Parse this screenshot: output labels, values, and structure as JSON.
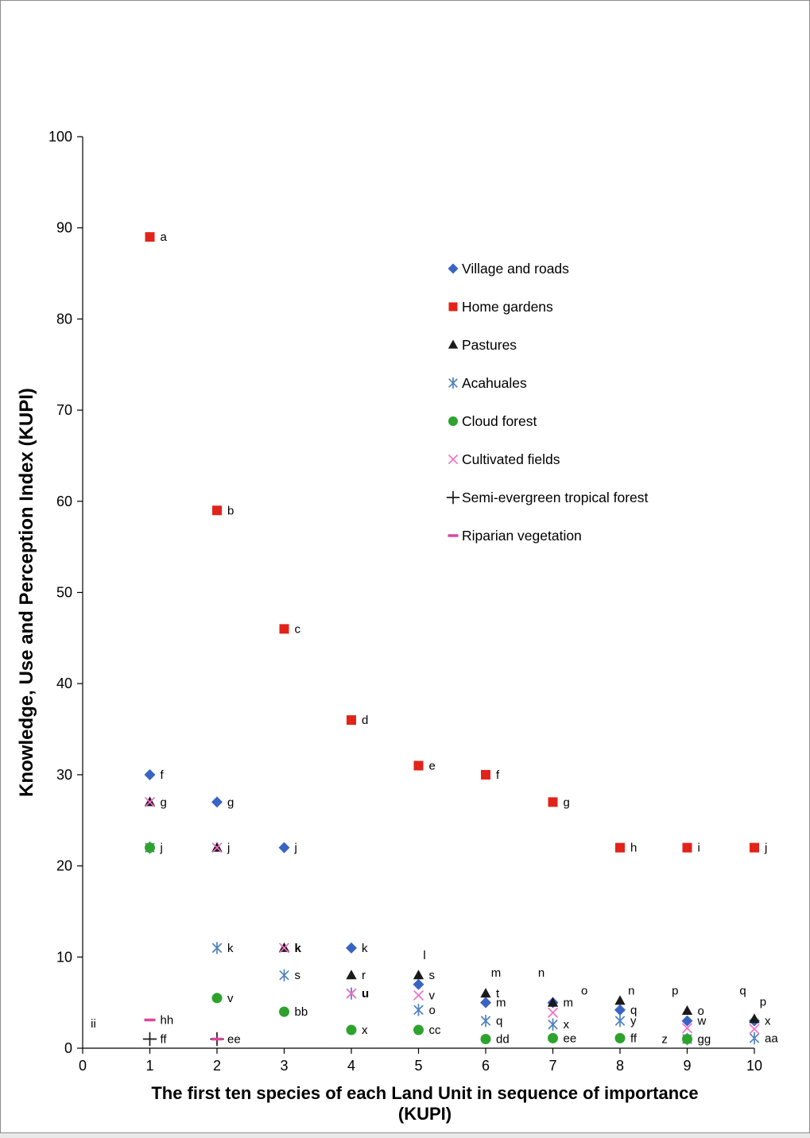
{
  "figure": {
    "background": "#ffffff",
    "border_color": "#8c8c8c",
    "axis_color": "#000000"
  },
  "chart_data": {
    "type": "scatter",
    "title": "",
    "ylabel": "Knowledge, Use and Perception Index (KUPI)",
    "xlabel_line1": "The first ten species of each Land Unit in sequence of importance",
    "xlabel_line2": "(KUPI)",
    "xlim": [
      0,
      10
    ],
    "ylim": [
      0,
      100
    ],
    "xticks": [
      0,
      1,
      2,
      3,
      4,
      5,
      6,
      7,
      8,
      9,
      10
    ],
    "yticks": [
      0,
      10,
      20,
      30,
      40,
      50,
      60,
      70,
      80,
      90,
      100
    ],
    "grid": false,
    "legend_position": "inside-upper-middle",
    "series": [
      {
        "name": "Village and roads",
        "marker": "diamond",
        "color": "#3A64C4",
        "points": [
          {
            "x": 1,
            "y": 30,
            "label": "f"
          },
          {
            "x": 2,
            "y": 27,
            "label": "g"
          },
          {
            "x": 3,
            "y": 22,
            "label": "j"
          },
          {
            "x": 4,
            "y": 11,
            "label": "k"
          },
          {
            "x": 5,
            "y": 7
          },
          {
            "x": 6,
            "y": 5,
            "label": "m"
          },
          {
            "x": 7,
            "y": 5,
            "label": "m"
          },
          {
            "x": 8,
            "y": 4.2,
            "label": "q"
          },
          {
            "x": 9,
            "y": 3,
            "label": "w"
          },
          {
            "x": 10,
            "y": 3,
            "label": "x"
          }
        ]
      },
      {
        "name": "Home gardens",
        "marker": "square",
        "color": "#E2231A",
        "points": [
          {
            "x": 1,
            "y": 89,
            "label": "a"
          },
          {
            "x": 2,
            "y": 59,
            "label": "b"
          },
          {
            "x": 3,
            "y": 46,
            "label": "c"
          },
          {
            "x": 4,
            "y": 36,
            "label": "d"
          },
          {
            "x": 5,
            "y": 31,
            "label": "e"
          },
          {
            "x": 6,
            "y": 30,
            "label": "f"
          },
          {
            "x": 7,
            "y": 27,
            "label": "g"
          },
          {
            "x": 8,
            "y": 22,
            "label": "h"
          },
          {
            "x": 9,
            "y": 22,
            "label": "i"
          },
          {
            "x": 10,
            "y": 22,
            "label": "j"
          }
        ]
      },
      {
        "name": "Pastures",
        "marker": "triangle",
        "color": "#1A1A1A",
        "points": [
          {
            "x": 1,
            "y": 27,
            "label": "g"
          },
          {
            "x": 2,
            "y": 22,
            "label": "j"
          },
          {
            "x": 3,
            "y": 11,
            "label": "k",
            "bold": true
          },
          {
            "x": 4,
            "y": 8,
            "label": "r"
          },
          {
            "x": 5,
            "y": 8,
            "label": "s"
          },
          {
            "x": 6,
            "y": 6,
            "label": "t"
          },
          {
            "x": 7,
            "y": 5
          },
          {
            "x": 8,
            "y": 5.2
          },
          {
            "x": 9,
            "y": 4.1,
            "label": "o"
          },
          {
            "x": 10,
            "y": 3.2
          }
        ]
      },
      {
        "name": "Acahuales",
        "marker": "asterisk",
        "color": "#4F81BD",
        "points": [
          {
            "x": 1,
            "y": 22
          },
          {
            "x": 2,
            "y": 11,
            "label": "k"
          },
          {
            "x": 3,
            "y": 8,
            "label": "s"
          },
          {
            "x": 4,
            "y": 6,
            "label": "u",
            "bold": true
          },
          {
            "x": 5,
            "y": 4.2,
            "label": "o"
          },
          {
            "x": 6,
            "y": 3,
            "label": "q"
          },
          {
            "x": 7,
            "y": 2.6,
            "label": "x"
          },
          {
            "x": 8,
            "y": 3,
            "label": "y"
          },
          {
            "x": 9,
            "y": 1
          },
          {
            "x": 10,
            "y": 1.1,
            "label": "aa"
          }
        ]
      },
      {
        "name": "Cloud forest",
        "marker": "circle",
        "color": "#2DA32D",
        "points": [
          {
            "x": 1,
            "y": 22,
            "label": "j"
          },
          {
            "x": 2,
            "y": 5.5,
            "label": "v"
          },
          {
            "x": 3,
            "y": 4,
            "label": "bb"
          },
          {
            "x": 4,
            "y": 2,
            "label": "x"
          },
          {
            "x": 5,
            "y": 2,
            "label": "cc"
          },
          {
            "x": 6,
            "y": 1,
            "label": "dd"
          },
          {
            "x": 7,
            "y": 1.1,
            "label": "ee"
          },
          {
            "x": 8,
            "y": 1.1,
            "label": "ff"
          },
          {
            "x": 9,
            "y": 1,
            "label": "gg"
          }
        ]
      },
      {
        "name": "Cultivated fields",
        "marker": "x",
        "color": "#F06EC8",
        "points": [
          {
            "x": 1,
            "y": 27
          },
          {
            "x": 2,
            "y": 22
          },
          {
            "x": 3,
            "y": 11
          },
          {
            "x": 4,
            "y": 6
          },
          {
            "x": 5,
            "y": 5.8,
            "label": "v"
          },
          {
            "x": 7,
            "y": 3.9
          },
          {
            "x": 9,
            "y": 2.2
          },
          {
            "x": 10,
            "y": 2.1
          }
        ]
      },
      {
        "name": "Semi-evergreen tropical forest",
        "marker": "plus",
        "color": "#1A1A1A",
        "points": [
          {
            "x": 1,
            "y": 1,
            "label": "ff"
          },
          {
            "x": 2,
            "y": 1,
            "label": "ee"
          }
        ]
      },
      {
        "name": "Riparian vegetation",
        "marker": "dash",
        "color": "#E0459E",
        "points": [
          {
            "x": 1,
            "y": 3.1,
            "label": "hh"
          },
          {
            "x": 2,
            "y": 1
          }
        ]
      }
    ],
    "annotations": [
      {
        "x": 0.12,
        "y": 2.7,
        "text": "ii"
      },
      {
        "x": 5.07,
        "y": 10.2,
        "text": "l"
      },
      {
        "x": 6.08,
        "y": 8.3,
        "text": "m"
      },
      {
        "x": 6.78,
        "y": 8.3,
        "text": "n"
      },
      {
        "x": 7.42,
        "y": 6.3,
        "text": "o"
      },
      {
        "x": 8.12,
        "y": 6.3,
        "text": "n"
      },
      {
        "x": 8.77,
        "y": 6.3,
        "text": "p"
      },
      {
        "x": 9.78,
        "y": 6.3,
        "text": "q"
      },
      {
        "x": 10.08,
        "y": 5.1,
        "text": "p"
      },
      {
        "x": 8.62,
        "y": 1.0,
        "text": "z"
      }
    ]
  }
}
